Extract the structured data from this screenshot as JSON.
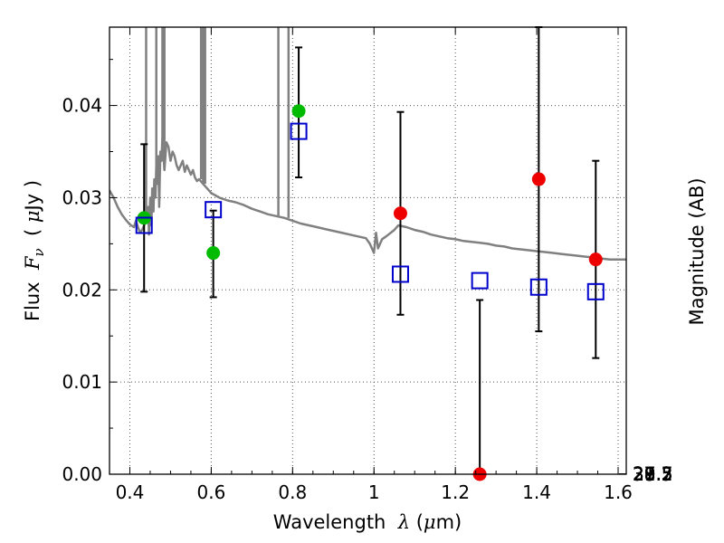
{
  "chart_data": {
    "type": "scatter",
    "xlabel_parts": [
      "Wavelength  ",
      "λ",
      " (",
      "μ",
      "m)"
    ],
    "ylabel_parts": [
      "Flux  ",
      "F",
      "ν",
      "  ( ",
      "μ",
      "Jy )"
    ],
    "y2label": "Magnitude (AB)",
    "xlim": [
      0.35,
      1.62
    ],
    "ylim": [
      0.0,
      0.0485
    ],
    "x_ticks": [
      0.4,
      0.6,
      0.8,
      1.0,
      1.2,
      1.4,
      1.6
    ],
    "x_tick_labels": [
      "0.4",
      "0.6",
      "0.8",
      "1",
      "1.2",
      "1.4",
      "1.6"
    ],
    "y_ticks": [
      0.0,
      0.01,
      0.02,
      0.03,
      0.04
    ],
    "y_tick_labels": [
      "0.00",
      "0.01",
      "0.02",
      "0.03",
      "0.04"
    ],
    "y2_ticks": [
      27.2,
      27.3,
      27.5,
      27.7,
      28,
      28.2,
      28.5,
      29,
      29.5,
      30,
      31
    ],
    "y2_tick_labels": [
      "27.2",
      "27.3",
      "27.5",
      "27.7",
      "28",
      "28.2",
      "28.5",
      "29",
      "29.5",
      "30",
      "31"
    ],
    "grid": true,
    "colors": {
      "model": "#808080",
      "green": "#00bb00",
      "red": "#ee0000",
      "box": "#0000cc",
      "errorbar": "#000000"
    },
    "series": [
      {
        "marker": "line",
        "points": [
          [
            0.35,
            0.0308
          ],
          [
            0.36,
            0.03
          ],
          [
            0.37,
            0.029
          ],
          [
            0.38,
            0.0282
          ],
          [
            0.39,
            0.0276
          ],
          [
            0.4,
            0.0271
          ],
          [
            0.41,
            0.0268
          ],
          [
            0.415,
            0.0275
          ],
          [
            0.42,
            0.0268
          ],
          [
            0.425,
            0.0262
          ],
          [
            0.43,
            0.0265
          ],
          [
            0.435,
            0.027
          ],
          [
            0.44,
            0.0275
          ],
          [
            0.445,
            0.029
          ],
          [
            0.447,
            0.026
          ],
          [
            0.45,
            0.03
          ],
          [
            0.453,
            0.027
          ],
          [
            0.455,
            0.031
          ],
          [
            0.458,
            0.0285
          ],
          [
            0.46,
            0.032
          ],
          [
            0.463,
            0.03
          ],
          [
            0.465,
            0.0335
          ],
          [
            0.468,
            0.0315
          ],
          [
            0.47,
            0.0345
          ],
          [
            0.472,
            0.029
          ],
          [
            0.475,
            0.035
          ],
          [
            0.478,
            0.034
          ],
          [
            0.48,
            0.0365
          ],
          [
            0.485,
            0.033
          ],
          [
            0.49,
            0.036
          ],
          [
            0.495,
            0.0355
          ],
          [
            0.5,
            0.034
          ],
          [
            0.505,
            0.035
          ],
          [
            0.51,
            0.0345
          ],
          [
            0.515,
            0.0335
          ],
          [
            0.52,
            0.033
          ],
          [
            0.525,
            0.0335
          ],
          [
            0.53,
            0.034
          ],
          [
            0.535,
            0.0328
          ],
          [
            0.54,
            0.0335
          ],
          [
            0.545,
            0.033
          ],
          [
            0.55,
            0.0325
          ],
          [
            0.555,
            0.033
          ],
          [
            0.56,
            0.0322
          ],
          [
            0.565,
            0.0318
          ],
          [
            0.57,
            0.032
          ],
          [
            0.58,
            0.0315
          ],
          [
            0.59,
            0.031
          ],
          [
            0.6,
            0.0305
          ],
          [
            0.62,
            0.03
          ],
          [
            0.64,
            0.0297
          ],
          [
            0.66,
            0.0295
          ],
          [
            0.68,
            0.0292
          ],
          [
            0.7,
            0.0288
          ],
          [
            0.72,
            0.0285
          ],
          [
            0.74,
            0.0282
          ],
          [
            0.76,
            0.028
          ],
          [
            0.78,
            0.0278
          ],
          [
            0.8,
            0.0275
          ],
          [
            0.82,
            0.0272
          ],
          [
            0.84,
            0.027
          ],
          [
            0.86,
            0.0268
          ],
          [
            0.88,
            0.0266
          ],
          [
            0.9,
            0.0264
          ],
          [
            0.92,
            0.0262
          ],
          [
            0.94,
            0.026
          ],
          [
            0.96,
            0.0258
          ],
          [
            0.98,
            0.0256
          ],
          [
            0.99,
            0.025
          ],
          [
            1.0,
            0.024
          ],
          [
            1.005,
            0.0262
          ],
          [
            1.01,
            0.0245
          ],
          [
            1.02,
            0.0255
          ],
          [
            1.03,
            0.0258
          ],
          [
            1.05,
            0.0265
          ],
          [
            1.06,
            0.027
          ],
          [
            1.08,
            0.0268
          ],
          [
            1.1,
            0.0265
          ],
          [
            1.12,
            0.0263
          ],
          [
            1.14,
            0.026
          ],
          [
            1.16,
            0.0258
          ],
          [
            1.18,
            0.0256
          ],
          [
            1.2,
            0.0255
          ],
          [
            1.22,
            0.0253
          ],
          [
            1.24,
            0.0252
          ],
          [
            1.26,
            0.0251
          ],
          [
            1.28,
            0.025
          ],
          [
            1.3,
            0.0248
          ],
          [
            1.32,
            0.0247
          ],
          [
            1.34,
            0.0245
          ],
          [
            1.36,
            0.0244
          ],
          [
            1.38,
            0.0243
          ],
          [
            1.4,
            0.0242
          ],
          [
            1.42,
            0.0241
          ],
          [
            1.44,
            0.024
          ],
          [
            1.46,
            0.0239
          ],
          [
            1.48,
            0.0238
          ],
          [
            1.5,
            0.0237
          ],
          [
            1.52,
            0.0236
          ],
          [
            1.54,
            0.0235
          ],
          [
            1.56,
            0.0234
          ],
          [
            1.58,
            0.0233
          ],
          [
            1.6,
            0.0233
          ],
          [
            1.62,
            0.0233
          ]
        ],
        "spikes": [
          0.44,
          0.465,
          0.48,
          0.485,
          0.575,
          0.58,
          0.585,
          0.765,
          0.79
        ]
      },
      {
        "marker": "circle-green",
        "points": [
          [
            0.435,
            0.0278
          ],
          [
            0.605,
            0.024
          ],
          [
            0.815,
            0.0394
          ]
        ]
      },
      {
        "marker": "circle-red",
        "points": [
          [
            1.065,
            0.0283
          ],
          [
            1.26,
            0.0
          ],
          [
            1.405,
            0.032
          ],
          [
            1.545,
            0.0233
          ]
        ]
      },
      {
        "marker": "square-open",
        "points": [
          [
            0.435,
            0.027
          ],
          [
            0.605,
            0.0287
          ],
          [
            0.815,
            0.0372
          ],
          [
            1.065,
            0.0217
          ],
          [
            1.26,
            0.021
          ],
          [
            1.405,
            0.0203
          ],
          [
            1.545,
            0.0198
          ]
        ]
      },
      {
        "marker": "errorbar",
        "bars": [
          {
            "x": 0.435,
            "lo": 0.0198,
            "hi": 0.0358
          },
          {
            "x": 0.605,
            "lo": 0.0192,
            "hi": 0.0286
          },
          {
            "x": 0.815,
            "lo": 0.0322,
            "hi": 0.0463
          },
          {
            "x": 1.065,
            "lo": 0.0173,
            "hi": 0.0393
          },
          {
            "x": 1.26,
            "lo": 0.0,
            "hi": 0.0189
          },
          {
            "x": 1.405,
            "lo": 0.0155,
            "hi": 0.0485
          },
          {
            "x": 1.545,
            "lo": 0.0126,
            "hi": 0.034
          }
        ]
      }
    ]
  }
}
